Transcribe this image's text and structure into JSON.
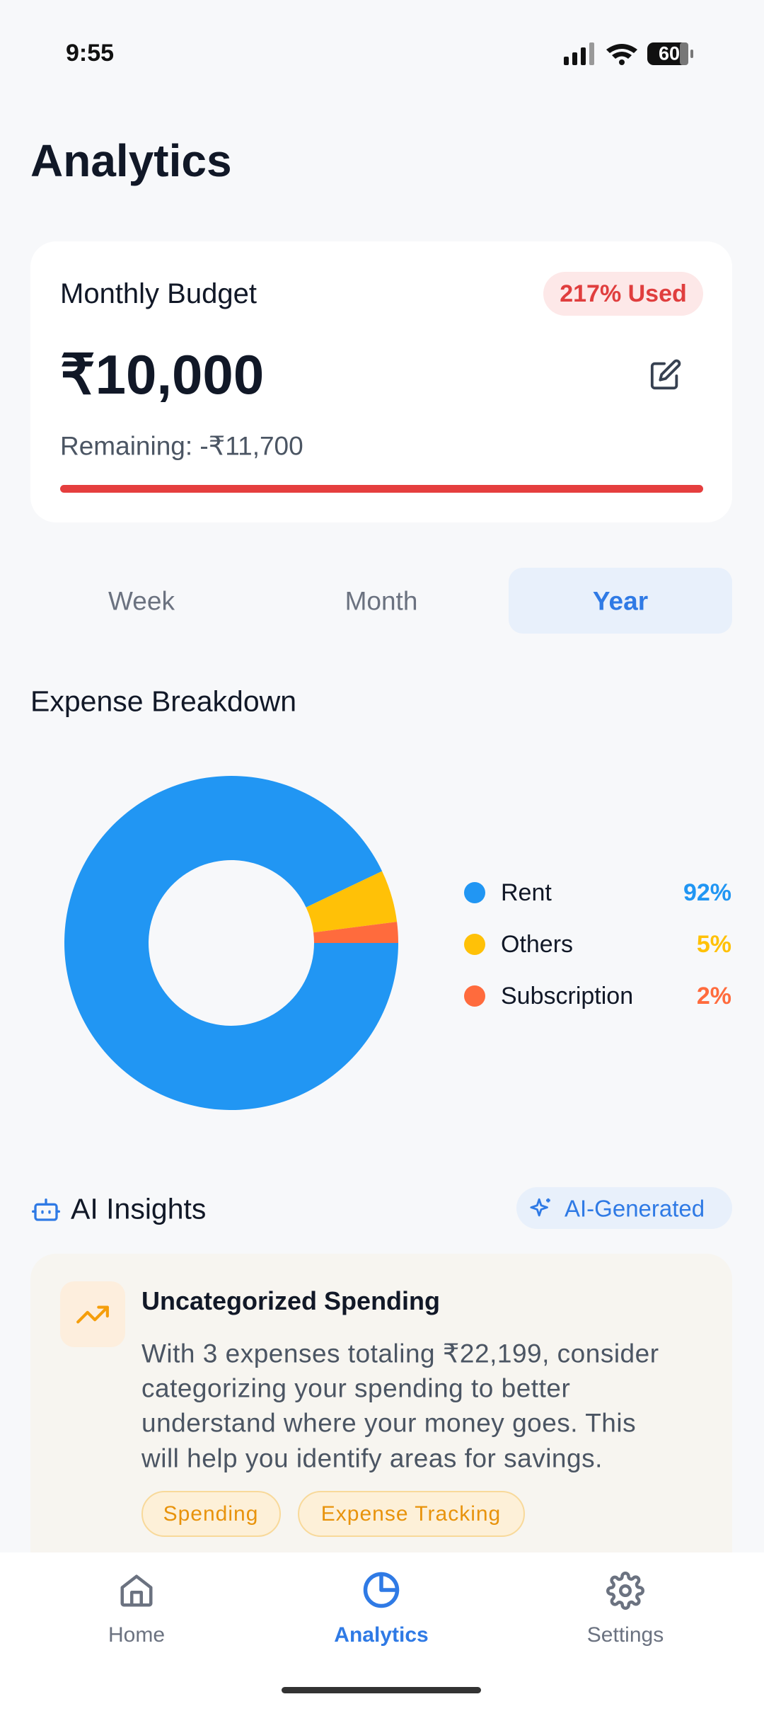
{
  "status_bar": {
    "time": "9:55",
    "battery": "60"
  },
  "header": {
    "title": "Analytics"
  },
  "budget": {
    "label": "Monthly Budget",
    "badge": "217% Used",
    "amount": "₹10,000",
    "remaining": "Remaining: -₹11,700"
  },
  "tabs": [
    "Week",
    "Month",
    "Year"
  ],
  "chart_data": {
    "type": "donut",
    "title": "Expense Breakdown",
    "categories": [
      "Rent",
      "Others",
      "Subscription"
    ],
    "values": [
      92,
      5,
      2
    ],
    "value_labels": [
      "92%",
      "5%",
      "2%"
    ],
    "colors": [
      "#2196f3",
      "#ffc107",
      "#ff6b3d"
    ]
  },
  "insights": {
    "title": "AI Insights",
    "badge": "AI-Generated",
    "card": {
      "title": "Uncategorized Spending",
      "lines": [
        "With 3 expenses totaling ₹22,199, consider",
        "categorizing your spending to better",
        "understand where your money goes. This",
        "will help you identify areas for savings."
      ],
      "tags": [
        "Spending",
        "Expense Tracking"
      ]
    }
  },
  "nav": [
    "Home",
    "Analytics",
    "Settings"
  ]
}
